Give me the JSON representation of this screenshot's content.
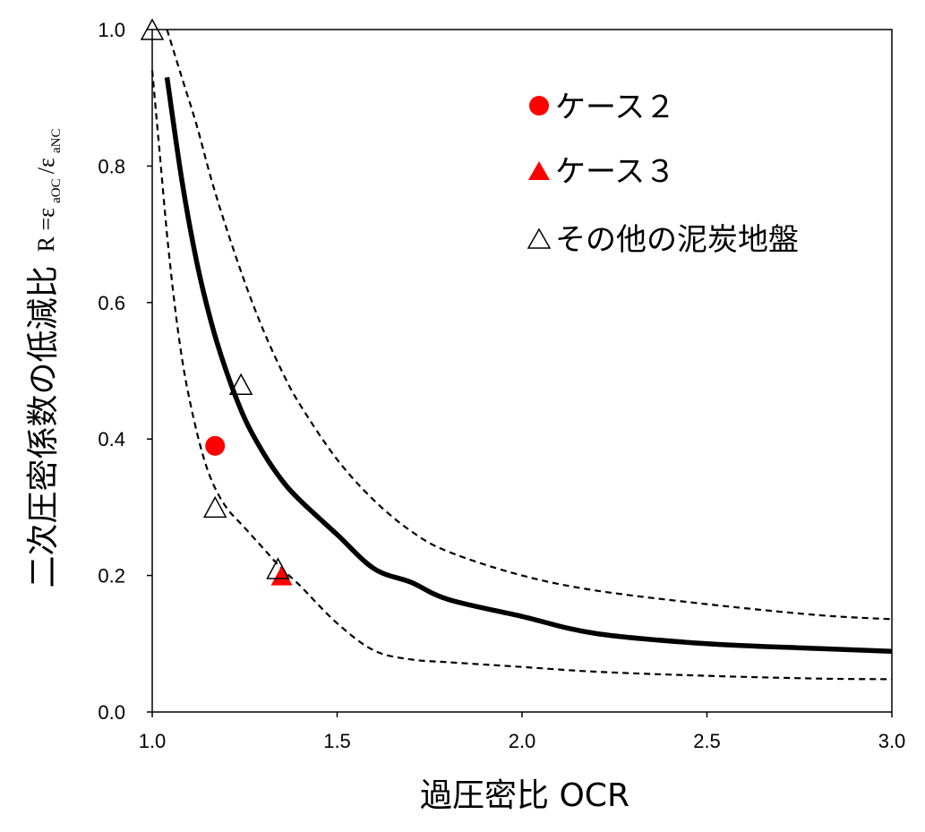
{
  "chart_data": {
    "type": "scatter",
    "xlabel": "過圧密比 OCR",
    "ylabel": {
      "main": "二次圧密係数の低減比",
      "eq": "R =ε",
      "sub1": "aOC",
      "mid": "/ε",
      "sub2": "aNC"
    },
    "xlim": [
      1.0,
      3.0
    ],
    "ylim": [
      0.0,
      1.0
    ],
    "x_ticks": [
      "1.0",
      "1.5",
      "2.0",
      "2.5",
      "3.0"
    ],
    "y_ticks": [
      "0.0",
      "0.2",
      "0.4",
      "0.6",
      "0.8",
      "1.0"
    ],
    "grid": false,
    "legend_position": "top-right",
    "series": [
      {
        "name": "ケース２",
        "marker": "circle",
        "color": "#ff0000",
        "points": [
          [
            1.17,
            0.39
          ]
        ]
      },
      {
        "name": "ケース３",
        "marker": "triangle",
        "color": "#ff0000",
        "points": [
          [
            1.35,
            0.2
          ]
        ]
      },
      {
        "name": "その他の泥炭地盤",
        "marker": "triangle-open",
        "color": "#000000",
        "points": [
          [
            1.0,
            1.0
          ],
          [
            1.17,
            0.3
          ],
          [
            1.24,
            0.48
          ],
          [
            1.34,
            0.21
          ]
        ]
      }
    ],
    "curves": [
      {
        "style": "solid",
        "color": "#000000",
        "points": [
          [
            1.04,
            0.93
          ],
          [
            1.08,
            0.78
          ],
          [
            1.12,
            0.66
          ],
          [
            1.16,
            0.57
          ],
          [
            1.2,
            0.5
          ],
          [
            1.25,
            0.43
          ],
          [
            1.3,
            0.38
          ],
          [
            1.35,
            0.34
          ],
          [
            1.4,
            0.31
          ],
          [
            1.5,
            0.26
          ],
          [
            1.6,
            0.21
          ],
          [
            1.7,
            0.19
          ],
          [
            1.8,
            0.165
          ],
          [
            2.0,
            0.14
          ],
          [
            2.2,
            0.115
          ],
          [
            2.5,
            0.1
          ],
          [
            2.8,
            0.093
          ],
          [
            3.0,
            0.089
          ]
        ]
      },
      {
        "style": "dashed",
        "color": "#000000",
        "points": [
          [
            1.04,
            1.0
          ],
          [
            1.08,
            0.93
          ],
          [
            1.12,
            0.86
          ],
          [
            1.16,
            0.78
          ],
          [
            1.2,
            0.71
          ],
          [
            1.25,
            0.63
          ],
          [
            1.3,
            0.56
          ],
          [
            1.35,
            0.5
          ],
          [
            1.4,
            0.45
          ],
          [
            1.5,
            0.37
          ],
          [
            1.6,
            0.31
          ],
          [
            1.7,
            0.265
          ],
          [
            1.8,
            0.235
          ],
          [
            2.0,
            0.2
          ],
          [
            2.2,
            0.178
          ],
          [
            2.5,
            0.158
          ],
          [
            2.8,
            0.142
          ],
          [
            3.0,
            0.136
          ]
        ]
      },
      {
        "style": "dashed",
        "color": "#000000",
        "points": [
          [
            1.0,
            0.94
          ],
          [
            1.02,
            0.82
          ],
          [
            1.04,
            0.7
          ],
          [
            1.06,
            0.6
          ],
          [
            1.08,
            0.52
          ],
          [
            1.1,
            0.46
          ],
          [
            1.13,
            0.39
          ],
          [
            1.16,
            0.34
          ],
          [
            1.2,
            0.3
          ],
          [
            1.25,
            0.27
          ],
          [
            1.3,
            0.24
          ],
          [
            1.35,
            0.21
          ],
          [
            1.4,
            0.185
          ],
          [
            1.5,
            0.13
          ],
          [
            1.6,
            0.09
          ],
          [
            1.7,
            0.077
          ],
          [
            1.8,
            0.073
          ],
          [
            2.0,
            0.066
          ],
          [
            2.2,
            0.059
          ],
          [
            2.5,
            0.053
          ],
          [
            2.8,
            0.049
          ],
          [
            3.0,
            0.048
          ]
        ]
      }
    ]
  }
}
